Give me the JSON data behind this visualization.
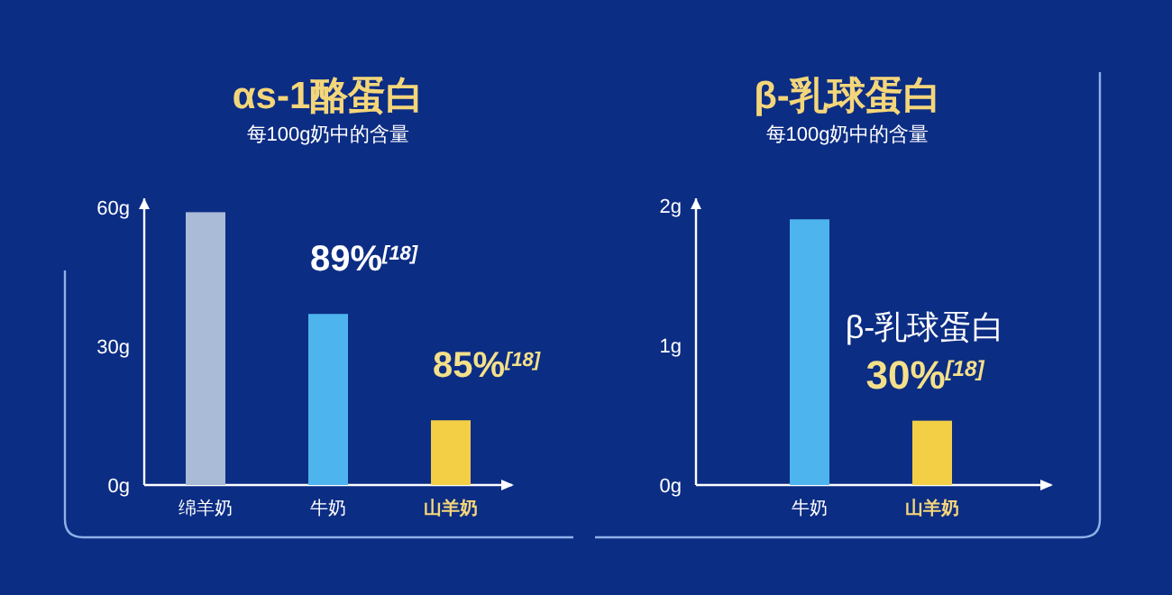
{
  "chart_data": [
    {
      "type": "bar",
      "title": "αs-1酪蛋白",
      "subtitle": "每100g奶中的含量",
      "categories": [
        "绵羊奶",
        "牛奶",
        "山羊奶"
      ],
      "values": [
        59,
        37,
        14
      ],
      "colors": [
        "#a9bbd6",
        "#4db4ee",
        "#f2cf45"
      ],
      "ylim": [
        0,
        62
      ],
      "yticks": [
        {
          "value": 0,
          "label": "0g"
        },
        {
          "value": 30,
          "label": "30g"
        },
        {
          "value": 60,
          "label": "60g"
        }
      ],
      "annotations": [
        "89%$^{[18]}$",
        "85%$^{[18]}$"
      ]
    },
    {
      "type": "bar",
      "title": "β-乳球蛋白",
      "subtitle": "每100g奶中的含量",
      "categories": [
        "牛奶",
        "山羊奶"
      ],
      "values": [
        1.9,
        0.46
      ],
      "colors": [
        "#4db4ee",
        "#f2cf45"
      ],
      "ylim": [
        0,
        2.05
      ],
      "yticks": [
        {
          "value": 0,
          "label": "0g"
        },
        {
          "value": 1,
          "label": "1g"
        },
        {
          "value": 2,
          "label": "2g"
        }
      ],
      "annotations": [
        "β-乳球蛋白",
        "30%$^{[18]}$"
      ]
    }
  ]
}
